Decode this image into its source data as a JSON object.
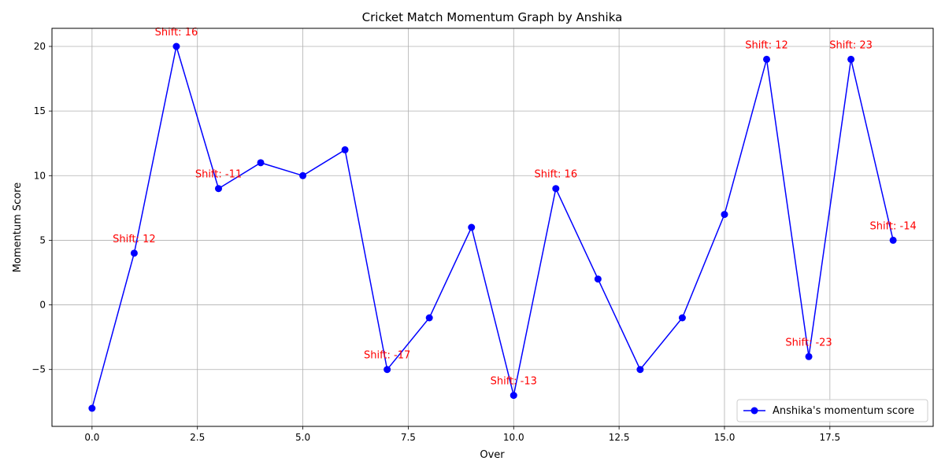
{
  "chart_data": {
    "type": "line",
    "title": "Cricket Match Momentum Graph by Anshika",
    "xlabel": "Over",
    "ylabel": "Momentum Score",
    "xlim": [
      -0.95,
      19.95
    ],
    "ylim": [
      -9.4,
      21.4
    ],
    "xticks": [
      "0.0",
      "2.5",
      "5.0",
      "7.5",
      "10.0",
      "12.5",
      "15.0",
      "17.5"
    ],
    "xtick_values": [
      0,
      2.5,
      5,
      7.5,
      10,
      12.5,
      15,
      17.5
    ],
    "yticks": [
      "−5",
      "0",
      "5",
      "10",
      "15",
      "20"
    ],
    "ytick_values": [
      -5,
      0,
      5,
      10,
      15,
      20
    ],
    "grid": true,
    "legend_position": "lower right",
    "series": [
      {
        "name": "Anshika's momentum score",
        "color": "#0000ff",
        "marker": "circle",
        "x": [
          0,
          1,
          2,
          3,
          4,
          5,
          6,
          7,
          8,
          9,
          10,
          11,
          12,
          13,
          14,
          15,
          16,
          17,
          18,
          19
        ],
        "y": [
          -8,
          4,
          20,
          9,
          11,
          10,
          12,
          -5,
          -1,
          6,
          -7,
          9,
          2,
          -5,
          -1,
          7,
          19,
          -4,
          19,
          5
        ]
      }
    ],
    "annotations": [
      {
        "x": 1,
        "y": 4,
        "text": "Shift: 12"
      },
      {
        "x": 2,
        "y": 20,
        "text": "Shift: 16"
      },
      {
        "x": 3,
        "y": 9,
        "text": "Shift: -11"
      },
      {
        "x": 7,
        "y": -5,
        "text": "Shift: -17"
      },
      {
        "x": 10,
        "y": -7,
        "text": "Shift: -13"
      },
      {
        "x": 11,
        "y": 9,
        "text": "Shift: 16"
      },
      {
        "x": 16,
        "y": 19,
        "text": "Shift: 12"
      },
      {
        "x": 17,
        "y": -4,
        "text": "Shift: -23"
      },
      {
        "x": 18,
        "y": 19,
        "text": "Shift: 23"
      },
      {
        "x": 19,
        "y": 5,
        "text": "Shift: -14"
      }
    ],
    "annotation_color": "#ff0000"
  }
}
